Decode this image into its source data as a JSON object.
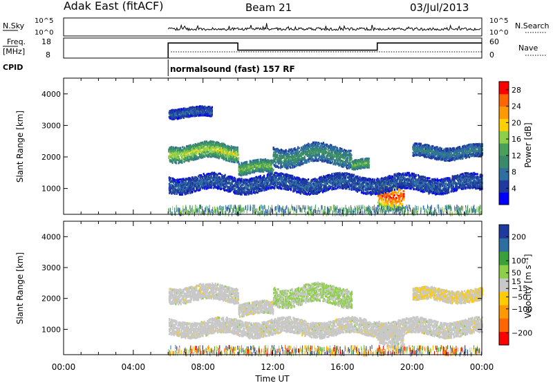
{
  "header": {
    "station": "Adak East (fitACF)",
    "beam": "Beam 21",
    "date": "03/Jul/2013"
  },
  "summary_panels": {
    "nsky": {
      "left_label": "N.Sky",
      "left_ticks": [
        "10^5",
        "10^0"
      ],
      "right_label": "N.Search",
      "right_ticks": [
        "10^5",
        "10^0"
      ]
    },
    "freq": {
      "left_label_line1": "Freq.",
      "left_label_line2": "[MHz]",
      "left_ticks": [
        "18",
        "8"
      ],
      "right_label": "Nave",
      "right_ticks": [
        "60",
        "0"
      ],
      "freq_steps_hours": [
        [
          6,
          10,
          16
        ],
        [
          10,
          18,
          12
        ],
        [
          18,
          24,
          16
        ]
      ],
      "freq_range_mhz": [
        8,
        18
      ]
    },
    "cpid": {
      "label": "CPID",
      "start_hour": 6,
      "program": "normalsound (fast) 157 RF"
    }
  },
  "chart_data": [
    {
      "type": "heatmap",
      "title": "",
      "ylabel": "Slant Range [km]",
      "xlabel": "",
      "ylim": [
        180,
        4500
      ],
      "xlim_hours": [
        0,
        24
      ],
      "yticks": [
        "4000",
        "3000",
        "2000",
        "1000"
      ],
      "ytick_values": [
        4000,
        3000,
        2000,
        1000
      ],
      "colorbar": {
        "label": "Power [dB]",
        "ticks": [
          "28",
          "24",
          "20",
          "16",
          "12",
          "8",
          "4"
        ],
        "tick_values": [
          28,
          24,
          20,
          16,
          12,
          8,
          4
        ],
        "range": [
          0,
          30
        ],
        "colors": [
          "#0000ff",
          "#1f3a9e",
          "#2e6ea0",
          "#3a8a6a",
          "#4aa05a",
          "#8ecf4a",
          "#ffd000",
          "#ff9900",
          "#ff6600",
          "#ff0000"
        ]
      },
      "echo_bands": [
        {
          "t0": 6.0,
          "t1": 10.0,
          "r_center": 2150,
          "half_width": 250,
          "power": 16
        },
        {
          "t0": 10.0,
          "t1": 12.0,
          "r_center": 1650,
          "half_width": 200,
          "power": 14
        },
        {
          "t0": 12.0,
          "t1": 16.5,
          "r_center": 2050,
          "half_width": 300,
          "power": 10
        },
        {
          "t0": 16.5,
          "t1": 17.5,
          "r_center": 1750,
          "half_width": 150,
          "power": 14
        },
        {
          "t0": 18.0,
          "t1": 19.5,
          "r_center": 900,
          "half_width": 450,
          "power": 24
        },
        {
          "t0": 20.0,
          "t1": 24.0,
          "r_center": 2150,
          "half_width": 200,
          "power": 8
        },
        {
          "t0": 6.0,
          "t1": 24.0,
          "r_center": 1150,
          "half_width": 250,
          "power": 6
        },
        {
          "t0": 6.0,
          "t1": 8.5,
          "r_center": 3400,
          "half_width": 150,
          "power": 6
        }
      ]
    },
    {
      "type": "heatmap",
      "title": "",
      "ylabel": "Slant Range [km]",
      "xlabel": "Time UT",
      "ylim": [
        180,
        4500
      ],
      "xlim_hours": [
        0,
        24
      ],
      "xticks": [
        "00:00",
        "04:00",
        "08:00",
        "12:00",
        "16:00",
        "20:00",
        "00:00"
      ],
      "xtick_values": [
        0,
        4,
        8,
        12,
        16,
        20,
        24
      ],
      "yticks": [
        "4000",
        "3000",
        "2000",
        "1000"
      ],
      "ytick_values": [
        4000,
        3000,
        2000,
        1000
      ],
      "colorbar": {
        "label": "Velocity [m s⁻¹]",
        "ticks": [
          "200",
          "100",
          "50",
          "15",
          "−15",
          "−50",
          "−100",
          "−200"
        ],
        "tick_values": [
          200,
          100,
          50,
          15,
          -15,
          -50,
          -100,
          -200
        ],
        "range": [
          -250,
          250
        ],
        "colors": [
          "#ff0000",
          "#ff6600",
          "#ff9900",
          "#ffcc00",
          "#c8c8c8",
          "#8ecf4a",
          "#3aa03a",
          "#2e6ea0",
          "#1f3a9e"
        ]
      },
      "echo_bands": [
        {
          "t0": 6.0,
          "t1": 10.0,
          "r_center": 2150,
          "half_width": 250,
          "velocity": 0
        },
        {
          "t0": 10.0,
          "t1": 12.0,
          "r_center": 1650,
          "half_width": 200,
          "velocity": 0
        },
        {
          "t0": 12.0,
          "t1": 16.5,
          "r_center": 2100,
          "half_width": 300,
          "velocity": 30
        },
        {
          "t0": 18.0,
          "t1": 19.5,
          "r_center": 800,
          "half_width": 350,
          "velocity": 0
        },
        {
          "t0": 20.0,
          "t1": 24.0,
          "r_center": 2100,
          "half_width": 200,
          "velocity": -20
        },
        {
          "t0": 6.0,
          "t1": 24.0,
          "r_center": 1050,
          "half_width": 250,
          "velocity": 0
        }
      ]
    }
  ]
}
